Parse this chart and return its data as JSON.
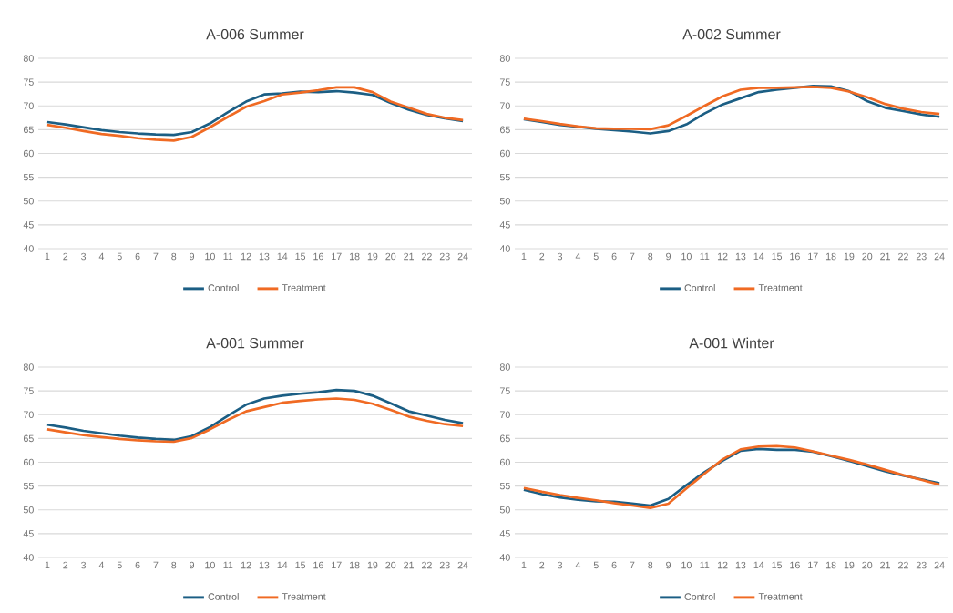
{
  "chart_data": [
    {
      "type": "line",
      "title": "A-006 Summer",
      "categories": [
        "1",
        "2",
        "3",
        "4",
        "5",
        "6",
        "7",
        "8",
        "9",
        "10",
        "11",
        "12",
        "13",
        "14",
        "15",
        "16",
        "17",
        "18",
        "19",
        "20",
        "21",
        "22",
        "23",
        "24"
      ],
      "ylim": [
        40,
        80
      ],
      "yticks": [
        40,
        45,
        50,
        55,
        60,
        65,
        70,
        75,
        80
      ],
      "grid": "y",
      "legend": "bottom",
      "series": [
        {
          "name": "Control",
          "color": "#1b5e84",
          "values": [
            66.6,
            66.1,
            65.5,
            64.9,
            64.5,
            64.2,
            64.0,
            63.9,
            64.5,
            66.3,
            68.7,
            70.9,
            72.4,
            72.6,
            73.0,
            72.9,
            73.1,
            72.8,
            72.3,
            70.6,
            69.2,
            68.1,
            67.4,
            66.8
          ]
        },
        {
          "name": "Treatment",
          "color": "#f06a23",
          "values": [
            66.0,
            65.4,
            64.7,
            64.1,
            63.7,
            63.2,
            62.9,
            62.7,
            63.5,
            65.5,
            67.7,
            69.8,
            71.0,
            72.4,
            72.8,
            73.3,
            73.9,
            73.9,
            72.9,
            70.9,
            69.6,
            68.3,
            67.5,
            67.0
          ]
        }
      ]
    },
    {
      "type": "line",
      "title": "A-002 Summer",
      "categories": [
        "1",
        "2",
        "3",
        "4",
        "5",
        "6",
        "7",
        "8",
        "9",
        "10",
        "11",
        "12",
        "13",
        "14",
        "15",
        "16",
        "17",
        "18",
        "19",
        "20",
        "21",
        "22",
        "23",
        "24"
      ],
      "ylim": [
        40,
        80
      ],
      "yticks": [
        40,
        45,
        50,
        55,
        60,
        65,
        70,
        75,
        80
      ],
      "grid": "y",
      "legend": "bottom",
      "series": [
        {
          "name": "Control",
          "color": "#1b5e84",
          "values": [
            67.2,
            66.6,
            66.0,
            65.6,
            65.2,
            64.9,
            64.6,
            64.2,
            64.7,
            66.1,
            68.4,
            70.3,
            71.6,
            72.9,
            73.4,
            73.8,
            74.2,
            74.1,
            73.1,
            71.0,
            69.6,
            68.9,
            68.2,
            67.7
          ]
        },
        {
          "name": "Treatment",
          "color": "#f06a23",
          "values": [
            67.3,
            66.8,
            66.2,
            65.7,
            65.3,
            65.2,
            65.2,
            65.1,
            65.9,
            67.9,
            70.0,
            72.0,
            73.4,
            73.8,
            73.8,
            73.9,
            74.0,
            73.8,
            73.0,
            71.8,
            70.4,
            69.4,
            68.7,
            68.3
          ]
        }
      ]
    },
    {
      "type": "line",
      "title": "A-001 Summer",
      "categories": [
        "1",
        "2",
        "3",
        "4",
        "5",
        "6",
        "7",
        "8",
        "9",
        "10",
        "11",
        "12",
        "13",
        "14",
        "15",
        "16",
        "17",
        "18",
        "19",
        "20",
        "21",
        "22",
        "23",
        "24"
      ],
      "ylim": [
        40,
        80
      ],
      "yticks": [
        40,
        45,
        50,
        55,
        60,
        65,
        70,
        75,
        80
      ],
      "grid": "y",
      "legend": "bottom",
      "series": [
        {
          "name": "Control",
          "color": "#1b5e84",
          "values": [
            67.9,
            67.3,
            66.6,
            66.1,
            65.6,
            65.2,
            64.9,
            64.7,
            65.5,
            67.4,
            69.8,
            72.1,
            73.4,
            74.0,
            74.4,
            74.7,
            75.2,
            75.0,
            74.0,
            72.4,
            70.7,
            69.8,
            68.9,
            68.2
          ]
        },
        {
          "name": "Treatment",
          "color": "#f06a23",
          "values": [
            66.9,
            66.3,
            65.7,
            65.3,
            64.9,
            64.6,
            64.4,
            64.3,
            65.1,
            66.9,
            68.9,
            70.7,
            71.6,
            72.5,
            72.9,
            73.2,
            73.4,
            73.1,
            72.3,
            71.0,
            69.6,
            68.7,
            68.0,
            67.6
          ]
        }
      ]
    },
    {
      "type": "line",
      "title": "A-001 Winter",
      "categories": [
        "1",
        "2",
        "3",
        "4",
        "5",
        "6",
        "7",
        "8",
        "9",
        "10",
        "11",
        "12",
        "13",
        "14",
        "15",
        "16",
        "17",
        "18",
        "19",
        "20",
        "21",
        "22",
        "23",
        "24"
      ],
      "ylim": [
        40,
        80
      ],
      "yticks": [
        40,
        45,
        50,
        55,
        60,
        65,
        70,
        75,
        80
      ],
      "grid": "y",
      "legend": "bottom",
      "series": [
        {
          "name": "Control",
          "color": "#1b5e84",
          "values": [
            54.2,
            53.3,
            52.6,
            52.1,
            51.8,
            51.7,
            51.3,
            50.9,
            52.3,
            55.2,
            57.9,
            60.3,
            62.4,
            62.8,
            62.6,
            62.6,
            62.2,
            61.3,
            60.3,
            59.2,
            58.1,
            57.2,
            56.4,
            55.6
          ]
        },
        {
          "name": "Treatment",
          "color": "#f06a23",
          "values": [
            54.6,
            53.8,
            53.1,
            52.5,
            52.0,
            51.4,
            50.9,
            50.4,
            51.3,
            54.5,
            57.6,
            60.6,
            62.7,
            63.3,
            63.4,
            63.1,
            62.3,
            61.4,
            60.5,
            59.5,
            58.4,
            57.3,
            56.3,
            55.3
          ]
        }
      ]
    }
  ]
}
